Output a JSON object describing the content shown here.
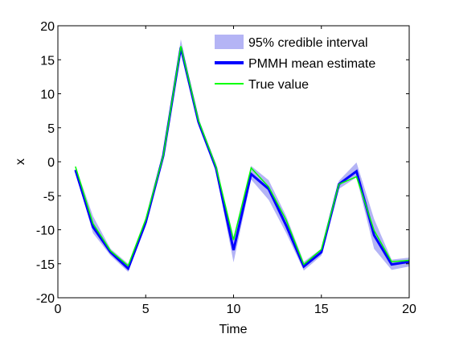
{
  "chart_data": {
    "type": "line",
    "xlabel": "Time",
    "ylabel": "x",
    "xlim": [
      0,
      20
    ],
    "ylim": [
      -20,
      20
    ],
    "xticks": [
      0,
      5,
      10,
      15,
      20
    ],
    "yticks": [
      -20,
      -15,
      -10,
      -5,
      0,
      5,
      10,
      15,
      20
    ],
    "grid": false,
    "legend_position": "top-right",
    "x": [
      1,
      2,
      3,
      4,
      5,
      6,
      7,
      8,
      9,
      10,
      11,
      12,
      13,
      14,
      15,
      16,
      17,
      18,
      19,
      20
    ],
    "series": [
      {
        "name": "95% credible interval",
        "kind": "band",
        "color": "#b4b4f5",
        "lower": [
          -1.5,
          -10.5,
          -13.8,
          -16.2,
          -9.5,
          0.6,
          16.0,
          5.3,
          -1.5,
          -14.8,
          -2.6,
          -5.6,
          -10.5,
          -16.0,
          -13.8,
          -4.0,
          -2.3,
          -12.8,
          -15.9,
          -15.4
        ],
        "upper": [
          -0.6,
          -8.0,
          -12.8,
          -15.0,
          -8.2,
          1.3,
          18.0,
          6.3,
          -0.3,
          -11.0,
          -0.6,
          -2.7,
          -8.0,
          -14.7,
          -12.8,
          -2.8,
          -0.1,
          -8.4,
          -14.4,
          -14.1
        ]
      },
      {
        "name": "PMMH mean estimate",
        "kind": "line",
        "color": "#0000ff",
        "values": [
          -1.2,
          -9.6,
          -13.3,
          -15.7,
          -8.9,
          0.9,
          16.8,
          5.9,
          -0.9,
          -13.0,
          -1.8,
          -4.0,
          -9.4,
          -15.4,
          -13.3,
          -3.3,
          -1.4,
          -10.8,
          -15.1,
          -14.7
        ]
      },
      {
        "name": "True value",
        "kind": "line",
        "color": "#00ff00",
        "values": [
          -0.7,
          -9.1,
          -13.1,
          -15.3,
          -8.5,
          0.9,
          17.0,
          6.1,
          -0.7,
          -11.5,
          -0.9,
          -3.7,
          -8.6,
          -15.1,
          -12.9,
          -3.3,
          -2.2,
          -10.1,
          -14.7,
          -14.5
        ]
      }
    ],
    "legend": [
      {
        "label": "95% credible interval",
        "color": "#b4b4f5"
      },
      {
        "label": "PMMH mean estimate",
        "color": "#0000ff"
      },
      {
        "label": "True value",
        "color": "#00ff00"
      }
    ]
  }
}
